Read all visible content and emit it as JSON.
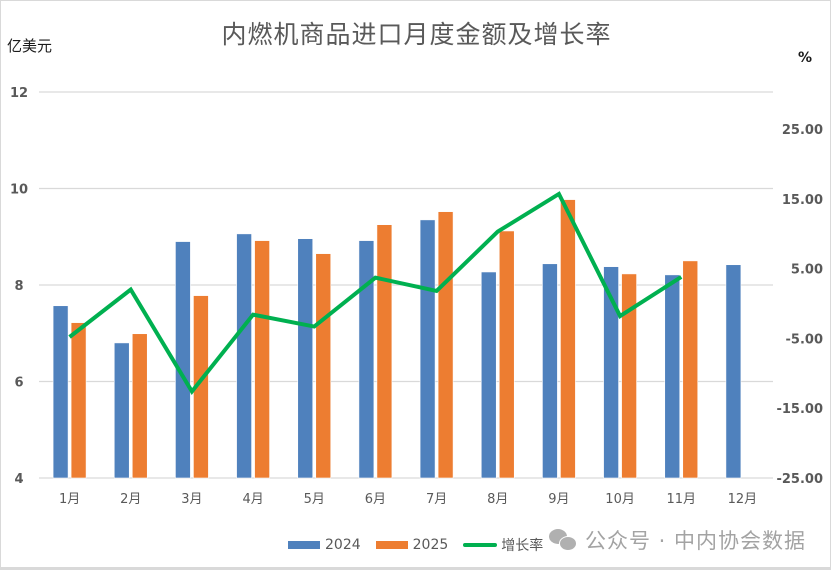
{
  "chart_data": {
    "type": "bar",
    "combo": "bar+line (dual axis)",
    "title": "内燃机商品进口月度金额及增长率",
    "ylabel": "亿美元",
    "y2label": "%",
    "categories": [
      "1月",
      "2月",
      "3月",
      "4月",
      "5月",
      "6月",
      "7月",
      "8月",
      "9月",
      "10月",
      "11月",
      "12月"
    ],
    "series": [
      {
        "name": "2024",
        "type": "bar",
        "axis": "left",
        "color": "#4f81bd",
        "values": [
          7.57,
          6.8,
          8.9,
          9.06,
          8.96,
          8.92,
          9.35,
          8.27,
          8.44,
          8.38,
          8.21,
          8.42
        ]
      },
      {
        "name": "2025",
        "type": "bar",
        "axis": "left",
        "color": "#ed7d31",
        "values": [
          7.22,
          6.99,
          7.78,
          8.92,
          8.65,
          9.25,
          9.52,
          9.12,
          9.77,
          8.23,
          8.5,
          null
        ]
      },
      {
        "name": "增长率",
        "type": "line",
        "axis": "right",
        "color": "#00b050",
        "values": [
          -4.8,
          2.0,
          -12.6,
          -1.6,
          -3.3,
          3.7,
          1.8,
          10.3,
          15.7,
          -1.8,
          3.8,
          null
        ]
      }
    ],
    "ylim": [
      4,
      12
    ],
    "yticks": [
      "12",
      "10",
      "8",
      "6",
      "4"
    ],
    "y2lim": [
      -25,
      30
    ],
    "y2ticks": [
      "25.00",
      "15.00",
      "5.00",
      "-5.00",
      "-15.00",
      "-25.00"
    ],
    "grid": true,
    "legend_position": "bottom"
  },
  "title": "内燃机商品进口月度金额及增长率",
  "axis": {
    "left_unit": "亿美元",
    "right_unit": "%"
  },
  "legend": {
    "items": [
      {
        "label": "2024",
        "color": "#4f81bd",
        "kind": "bar"
      },
      {
        "label": "2025",
        "color": "#ed7d31",
        "kind": "bar"
      },
      {
        "label": "增长率",
        "color": "#00b050",
        "kind": "line"
      }
    ]
  },
  "watermark": {
    "icon": "wechat-icon",
    "text": "公众号 · 中内协会数据"
  }
}
